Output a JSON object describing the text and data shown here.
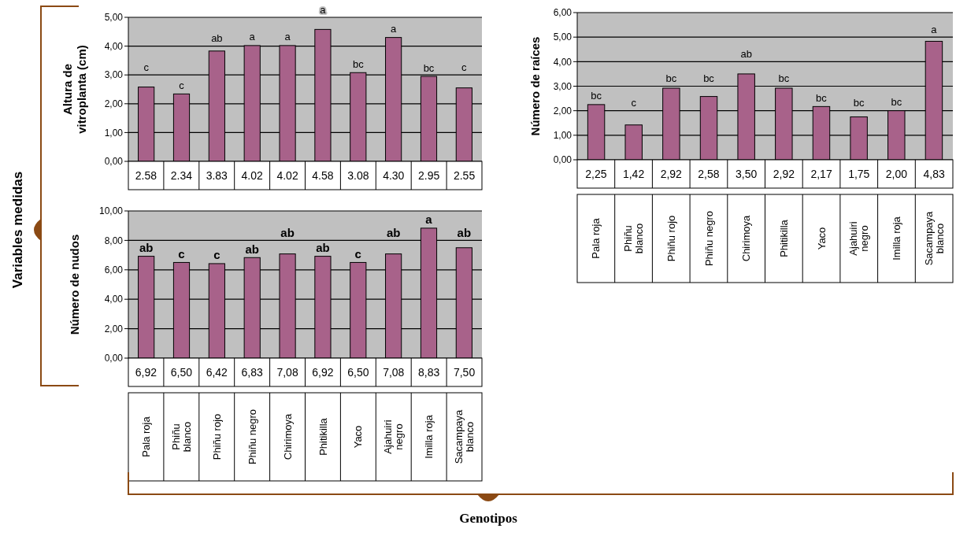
{
  "chart_data": [
    {
      "type": "bar",
      "ylabel": "Altura de vitroplanta (cm)",
      "categories": [
        "Pala roja",
        "Phiñu blanco",
        "Phiñu rojo",
        "Phiñu negro",
        "Chirimoya",
        "Phitikilla",
        "Yaco",
        "Ajahuiri negro",
        "Imilla roja",
        "Sacampaya blanco"
      ],
      "values": [
        2.58,
        2.34,
        3.83,
        4.02,
        4.02,
        4.58,
        3.08,
        4.3,
        2.95,
        2.55
      ],
      "value_labels": [
        "2.58",
        "2.34",
        "3.83",
        "4.02",
        "4.02",
        "4.58",
        "3.08",
        "4.30",
        "2.95",
        "2.55"
      ],
      "color": "#a8628a",
      "ylim": [
        0,
        5
      ],
      "yticks": [
        {
          "value": 0,
          "label": "0,00"
        },
        {
          "value": 1,
          "label": "1,00"
        },
        {
          "value": 2,
          "label": "2,00"
        },
        {
          "value": 3,
          "label": "3,00"
        },
        {
          "value": 4,
          "label": "4,00"
        },
        {
          "value": 5,
          "label": "5,00"
        }
      ],
      "grid": "y",
      "tick_labels": "y",
      "annotations": [
        {
          "text": "c",
          "x": "Pala roja",
          "y": 2.58
        },
        {
          "text": "c",
          "x": "Phiñu blanco",
          "y": 2.34
        },
        {
          "text": "ab",
          "x": "Phiñu rojo",
          "y": 3.83
        },
        {
          "text": "a",
          "x": "Phiñu negro",
          "y": 4.02
        },
        {
          "text": "a",
          "x": "Chirimoya",
          "y": 4.02
        },
        {
          "text": "a",
          "x": "Phitikilla",
          "y": 4.58
        },
        {
          "text": "bc",
          "x": "Yaco",
          "y": 3.08
        },
        {
          "text": "a",
          "x": "Ajahuiri negro",
          "y": 4.3
        },
        {
          "text": "bc",
          "x": "Imilla roja",
          "y": 2.95
        },
        {
          "text": "c",
          "x": "Sacampaya blanco",
          "y": 2.55
        },
        "Variables medidas"
      ]
    },
    {
      "type": "bar",
      "ylabel": "Número de raíces",
      "categories": [
        "Pala roja",
        "Phiñu blanco",
        "Phiñu rojo",
        "Phiñu negro",
        "Chirimoya",
        "Phitikilla",
        "Yaco",
        "Ajahuiri negro",
        "Imilla roja",
        "Sacampaya blanco"
      ],
      "values": [
        2.25,
        1.42,
        2.92,
        2.58,
        3.5,
        2.92,
        2.17,
        1.75,
        2.0,
        4.83
      ],
      "value_labels": [
        "2,25",
        "1,42",
        "2,92",
        "2,58",
        "3,50",
        "2,92",
        "2,17",
        "1,75",
        "2,00",
        "4,83"
      ],
      "color": "#a8628a",
      "ylim": [
        0,
        6
      ],
      "yticks": [
        {
          "value": 0,
          "label": "0,00"
        },
        {
          "value": 1,
          "label": "1,00"
        },
        {
          "value": 2,
          "label": "2,00"
        },
        {
          "value": 3,
          "label": "3,00"
        },
        {
          "value": 4,
          "label": "4,00"
        },
        {
          "value": 5,
          "label": "5,00"
        },
        {
          "value": 6,
          "label": "6,00"
        }
      ],
      "grid": "y",
      "annotations": [
        {
          "text": "bc",
          "x": "Pala roja",
          "y": 2.25
        },
        {
          "text": "c",
          "x": "Phiñu blanco",
          "y": 1.42
        },
        {
          "text": "bc",
          "x": "Phiñu rojo",
          "y": 2.92
        },
        {
          "text": "bc",
          "x": "Phiñu negro",
          "y": 2.58
        },
        {
          "text": "ab",
          "x": "Chirimoya",
          "y": 3.5
        },
        {
          "text": "bc",
          "x": "Phitikilla",
          "y": 2.92
        },
        {
          "text": "bc",
          "x": "Yaco",
          "y": 2.17
        },
        {
          "text": "bc",
          "x": "Ajahuiri negro",
          "y": 1.75
        },
        {
          "text": "bc",
          "x": "Imilla roja",
          "y": 2.0
        },
        {
          "text": "a",
          "x": "Sacampaya blanco",
          "y": 4.83
        }
      ]
    },
    {
      "type": "bar",
      "ylabel": "Número de nudos",
      "xlabel": "Genotipos",
      "categories": [
        "Pala roja",
        "Phiñu blanco",
        "Phiñu rojo",
        "Phiñu negro",
        "Chirimoya",
        "Phitikilla",
        "Yaco",
        "Ajahuiri negro",
        "Imilla roja",
        "Sacampaya blanco"
      ],
      "values": [
        6.92,
        6.5,
        6.42,
        6.83,
        7.08,
        6.92,
        6.5,
        7.08,
        8.83,
        7.5
      ],
      "value_labels": [
        "6,92",
        "6,50",
        "6,42",
        "6,83",
        "7,08",
        "6,92",
        "6,50",
        "7,08",
        "8,83",
        "7,50"
      ],
      "color": "#a8628a",
      "ylim": [
        0,
        10
      ],
      "yticks": [
        {
          "value": 0,
          "label": "0,00"
        },
        {
          "value": 2,
          "label": "2,00"
        },
        {
          "value": 4,
          "label": "4,00"
        },
        {
          "value": 6,
          "label": "6,00"
        },
        {
          "value": 8,
          "label": "8,00"
        },
        {
          "value": 10,
          "label": "10,00"
        }
      ],
      "grid": "y",
      "annotations": [
        {
          "text": "ab",
          "x": "Pala roja",
          "y": 6.92
        },
        {
          "text": "c",
          "x": "Phiñu blanco",
          "y": 6.5
        },
        {
          "text": "c",
          "x": "Phiñu rojo",
          "y": 6.42
        },
        {
          "text": "ab",
          "x": "Phiñu negro",
          "y": 6.83
        },
        {
          "text": "ab",
          "x": "Chirimoya",
          "y": 7.08
        },
        {
          "text": "ab",
          "x": "Phitikilla",
          "y": 6.92
        },
        {
          "text": "c",
          "x": "Yaco",
          "y": 6.5
        },
        {
          "text": "ab",
          "x": "Ajahuiri negro",
          "y": 7.08
        },
        {
          "text": "a",
          "x": "Imilla roja",
          "y": 8.83
        },
        {
          "text": "ab",
          "x": "Sacampaya blanco",
          "y": 7.5
        }
      ]
    }
  ]
}
